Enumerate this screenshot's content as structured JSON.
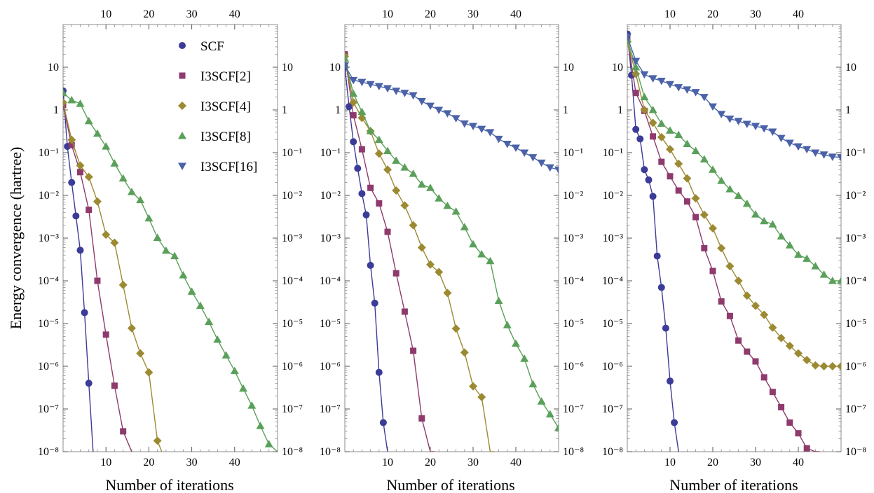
{
  "figure": {
    "ylabel": "Energy convergence (hartree)",
    "xlabel": "Number of iterations"
  },
  "icons": {
    "scf": "circle-marker",
    "i3scf2": "square-marker",
    "i3scf4": "diamond-marker",
    "i3scf8": "triangle-up-marker",
    "i3scf16": "triangle-down-marker"
  },
  "chart_data": [
    {
      "type": "line",
      "xlabel": "Number of iterations",
      "ylabel": "Energy convergence (hartree)",
      "xlim": [
        0,
        50
      ],
      "ylim": [
        1e-08,
        100
      ],
      "yscale": "log",
      "xticks": [
        10,
        20,
        30,
        40
      ],
      "yticks": [
        1e-08,
        1e-07,
        1e-06,
        1e-05,
        0.0001,
        0.001,
        0.01,
        0.1,
        1,
        10
      ],
      "grid": false,
      "legend": "top-right",
      "series": [
        {
          "name": "SCF",
          "marker": "circle",
          "color": "#3b3b98",
          "x": [
            0,
            1,
            2,
            3,
            4,
            5,
            6,
            7
          ],
          "y": [
            2.8,
            0.14,
            0.02,
            0.0033,
            0.00052,
            1.8e-05,
            4e-07,
            1e-08
          ]
        },
        {
          "name": "I3SCF[2]",
          "marker": "square",
          "color": "#8e3a6c",
          "x": [
            0,
            2,
            4,
            6,
            8,
            10,
            12,
            14,
            16
          ],
          "y": [
            1.3,
            0.15,
            0.035,
            0.0046,
            0.0001,
            5.5e-06,
            3.5e-07,
            3e-08,
            1e-08
          ]
        },
        {
          "name": "I3SCF[4]",
          "marker": "diamond",
          "color": "#9c8a33",
          "x": [
            0,
            2,
            4,
            6,
            8,
            10,
            12,
            14,
            16,
            18,
            20,
            22,
            23
          ],
          "y": [
            1.5,
            0.2,
            0.05,
            0.027,
            0.0072,
            0.0012,
            0.00078,
            8e-05,
            7.8e-06,
            2e-06,
            7.2e-07,
            1.8e-08,
            1e-08
          ]
        },
        {
          "name": "I3SCF[8]",
          "marker": "triangle-up",
          "color": "#5aa05a",
          "x": [
            0,
            2,
            4,
            6,
            8,
            10,
            12,
            14,
            16,
            18,
            20,
            22,
            24,
            26,
            28,
            30,
            32,
            34,
            36,
            38,
            40,
            42,
            44,
            46,
            48,
            50
          ],
          "y": [
            2.5,
            1.7,
            1.4,
            0.55,
            0.28,
            0.14,
            0.056,
            0.025,
            0.012,
            0.0078,
            0.0029,
            0.00102,
            0.00051,
            0.00038,
            0.000135,
            5.6e-05,
            2.6e-05,
            1.1e-05,
            4.2e-06,
            1.8e-06,
            7.8e-07,
            3e-07,
            1.2e-07,
            4e-08,
            1.5e-08,
            1e-08
          ]
        }
      ]
    },
    {
      "type": "line",
      "xlabel": "Number of iterations",
      "ylabel": "Energy convergence (hartree)",
      "xlim": [
        0,
        50
      ],
      "ylim": [
        1e-08,
        100
      ],
      "yscale": "log",
      "xticks": [
        10,
        20,
        30,
        40
      ],
      "yticks": [
        1e-08,
        1e-07,
        1e-06,
        1e-05,
        0.0001,
        0.001,
        0.01,
        0.1,
        1,
        10
      ],
      "grid": false,
      "series": [
        {
          "name": "SCF",
          "marker": "circle",
          "color": "#3b3b98",
          "x": [
            0,
            1,
            2,
            3,
            4,
            5,
            6,
            7,
            8,
            9,
            10
          ],
          "y": [
            10,
            1.2,
            0.18,
            0.043,
            0.011,
            0.0035,
            0.00023,
            3e-05,
            7.2e-07,
            4.8e-08,
            1e-08
          ]
        },
        {
          "name": "I3SCF[2]",
          "marker": "square",
          "color": "#8e3a6c",
          "x": [
            0,
            2,
            4,
            6,
            8,
            10,
            12,
            14,
            16,
            18,
            20,
            21
          ],
          "y": [
            20,
            0.75,
            0.12,
            0.015,
            0.0065,
            0.0014,
            0.00015,
            1.9e-05,
            2.3e-06,
            6e-08,
            1e-08,
            1e-08
          ]
        },
        {
          "name": "I3SCF[4]",
          "marker": "diamond",
          "color": "#9c8a33",
          "x": [
            0,
            2,
            4,
            6,
            8,
            10,
            12,
            14,
            16,
            18,
            20,
            22,
            24,
            26,
            28,
            30,
            32,
            34,
            35
          ],
          "y": [
            18,
            1.5,
            0.65,
            0.32,
            0.095,
            0.04,
            0.013,
            0.0058,
            0.002,
            0.0006,
            0.00024,
            0.00016,
            5.2e-05,
            7.6e-06,
            2.1e-06,
            3.4e-07,
            1.9e-07,
            1e-08,
            1e-08
          ]
        },
        {
          "name": "I3SCF[8]",
          "marker": "triangle-up",
          "color": "#5aa05a",
          "x": [
            0,
            2,
            4,
            6,
            8,
            10,
            12,
            14,
            16,
            18,
            20,
            22,
            24,
            26,
            28,
            30,
            32,
            34,
            36,
            38,
            40,
            42,
            44,
            46,
            48,
            50
          ],
          "y": [
            16,
            2.4,
            0.9,
            0.32,
            0.2,
            0.11,
            0.065,
            0.045,
            0.032,
            0.018,
            0.015,
            0.0085,
            0.0057,
            0.0042,
            0.0018,
            0.00072,
            0.00042,
            0.00029,
            3.4e-05,
            9.2e-06,
            3.4e-06,
            1.5e-06,
            3.8e-07,
            1.5e-07,
            7.5e-08,
            3.6e-08
          ]
        },
        {
          "name": "I3SCF[16]",
          "marker": "triangle-down",
          "color": "#4a62a8",
          "x": [
            0,
            2,
            4,
            6,
            8,
            10,
            12,
            14,
            16,
            18,
            20,
            22,
            24,
            26,
            28,
            30,
            32,
            34,
            36,
            38,
            40,
            42,
            44,
            46,
            48,
            50
          ],
          "y": [
            11,
            5,
            4.5,
            4,
            3.6,
            3.2,
            2.8,
            2.5,
            2.2,
            1.6,
            1.25,
            1.0,
            0.83,
            0.64,
            0.48,
            0.42,
            0.36,
            0.3,
            0.21,
            0.16,
            0.13,
            0.1,
            0.078,
            0.058,
            0.045,
            0.04
          ]
        }
      ]
    },
    {
      "type": "line",
      "xlabel": "Number of iterations",
      "ylabel": "Energy convergence (hartree)",
      "xlim": [
        0,
        50
      ],
      "ylim": [
        1e-08,
        100
      ],
      "yscale": "log",
      "xticks": [
        10,
        20,
        30,
        40
      ],
      "yticks": [
        1e-08,
        1e-07,
        1e-06,
        1e-05,
        0.0001,
        0.001,
        0.01,
        0.1,
        1,
        10
      ],
      "grid": false,
      "series": [
        {
          "name": "SCF",
          "marker": "circle",
          "color": "#3b3b98",
          "x": [
            0,
            1,
            2,
            3,
            4,
            5,
            6,
            7,
            8,
            9,
            10,
            11,
            12
          ],
          "y": [
            60,
            6.5,
            0.35,
            0.21,
            0.04,
            0.023,
            0.0095,
            0.00038,
            7e-05,
            7.8e-06,
            4.5e-07,
            4.8e-08,
            1e-08
          ]
        },
        {
          "name": "I3SCF[2]",
          "marker": "square",
          "color": "#8e3a6c",
          "x": [
            0,
            2,
            4,
            6,
            8,
            10,
            12,
            14,
            16,
            18,
            20,
            22,
            24,
            26,
            28,
            30,
            32,
            34,
            36,
            38,
            40,
            42,
            44,
            45
          ],
          "y": [
            50,
            2.5,
            0.95,
            0.24,
            0.061,
            0.028,
            0.013,
            0.0072,
            0.0031,
            0.00058,
            0.00017,
            3.3e-05,
            1.5e-05,
            4e-06,
            2.2e-06,
            1.3e-06,
            5.5e-07,
            2.5e-07,
            1.1e-07,
            4.8e-08,
            2.7e-08,
            1.2e-08,
            1e-08,
            1e-08
          ]
        },
        {
          "name": "I3SCF[4]",
          "marker": "diamond",
          "color": "#9c8a33",
          "x": [
            0,
            2,
            4,
            6,
            8,
            10,
            12,
            14,
            16,
            18,
            20,
            22,
            24,
            26,
            28,
            30,
            32,
            34,
            36,
            38,
            40,
            42,
            44,
            46,
            48,
            50
          ],
          "y": [
            40,
            7,
            1.0,
            0.5,
            0.23,
            0.12,
            0.055,
            0.025,
            0.0085,
            0.0035,
            0.0017,
            0.00058,
            0.00022,
            0.0001,
            4.5e-05,
            2.6e-05,
            1.6e-05,
            8e-06,
            4.6e-06,
            3e-06,
            2e-06,
            1.4e-06,
            1.05e-06,
            1e-06,
            1e-06,
            1e-06
          ]
        },
        {
          "name": "I3SCF[8]",
          "marker": "triangle-up",
          "color": "#5aa05a",
          "x": [
            0,
            2,
            4,
            6,
            8,
            10,
            12,
            14,
            16,
            18,
            20,
            22,
            24,
            26,
            28,
            30,
            32,
            34,
            36,
            38,
            40,
            42,
            44,
            46,
            48,
            50
          ],
          "y": [
            45,
            10,
            2.0,
            1.0,
            0.48,
            0.33,
            0.26,
            0.16,
            0.11,
            0.07,
            0.04,
            0.022,
            0.014,
            0.0098,
            0.0064,
            0.0036,
            0.0025,
            0.0021,
            0.0011,
            0.00068,
            0.00041,
            0.00033,
            0.00022,
            0.00014,
            0.0001,
            0.0001
          ]
        },
        {
          "name": "I3SCF[16]",
          "marker": "triangle-down",
          "color": "#4a62a8",
          "x": [
            0,
            2,
            4,
            6,
            8,
            10,
            12,
            14,
            16,
            18,
            20,
            22,
            24,
            26,
            28,
            30,
            32,
            34,
            36,
            38,
            40,
            42,
            44,
            46,
            48,
            50
          ],
          "y": [
            52,
            14,
            6.8,
            5.5,
            4.8,
            4.0,
            3.4,
            3.0,
            2.6,
            2.0,
            1.2,
            0.8,
            0.62,
            0.55,
            0.47,
            0.42,
            0.37,
            0.31,
            0.22,
            0.17,
            0.14,
            0.12,
            0.1,
            0.09,
            0.08,
            0.078
          ]
        }
      ]
    }
  ]
}
